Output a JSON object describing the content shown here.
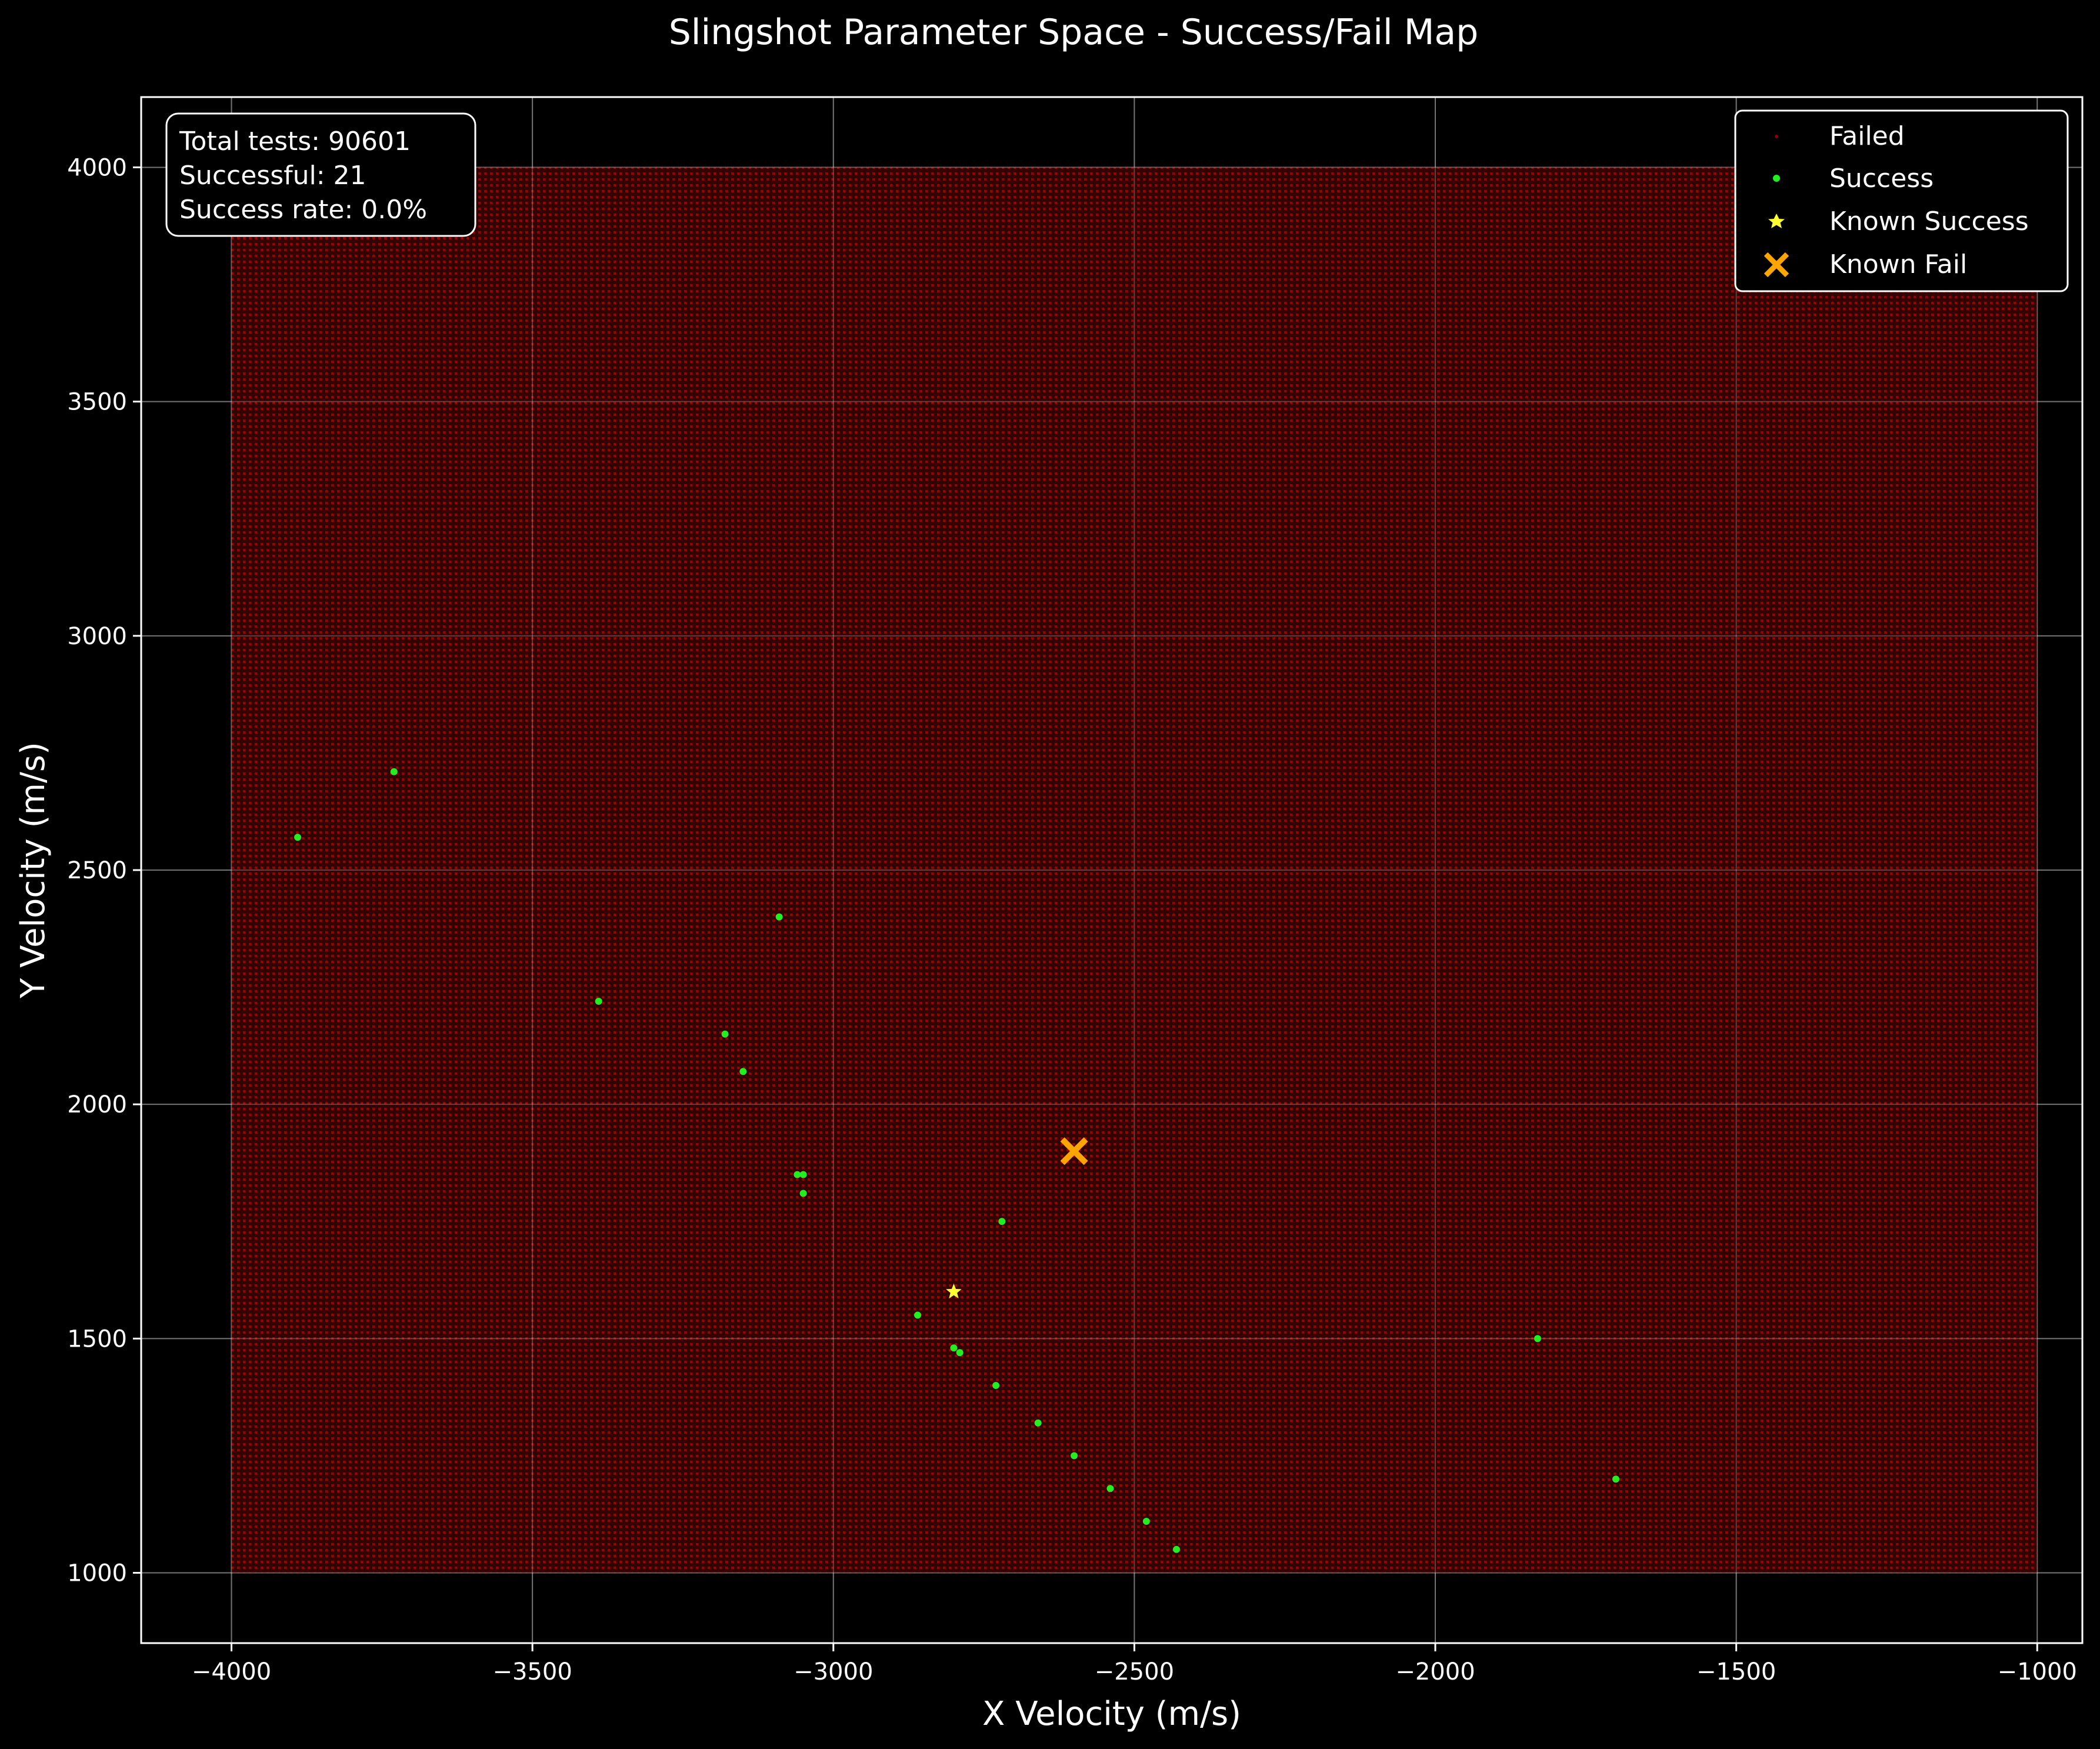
{
  "chart_data": {
    "type": "scatter",
    "title": "Slingshot Parameter Space - Success/Fail Map",
    "xlabel": "X Velocity (m/s)",
    "ylabel": "Y Velocity (m/s)",
    "xlim": [
      -4150,
      -925
    ],
    "ylim": [
      850,
      4150
    ],
    "xticks": [
      -4000,
      -3500,
      -3000,
      -2500,
      -2000,
      -1500,
      -1000
    ],
    "yticks": [
      1000,
      1500,
      2000,
      2500,
      3000,
      3500,
      4000
    ],
    "grid": true,
    "legend_position": "top-right",
    "stats_box": {
      "lines": [
        "Total tests: 90601",
        "Successful: 21",
        "Success rate: 0.0%"
      ]
    },
    "colors": {
      "background": "#000000",
      "failed": "#8b0000",
      "success": "#22ee22",
      "known_success": "#ffff33",
      "known_fail": "#ffa500",
      "text": "#ffffff"
    },
    "series": [
      {
        "name": "Failed",
        "marker": "dense-grid",
        "grid_x": [
          -4000,
          -1000
        ],
        "grid_y": [
          1000,
          4000
        ],
        "grid_count": [
          301,
          301
        ]
      },
      {
        "name": "Success",
        "marker": "dot",
        "points": [
          [
            -3890,
            2570
          ],
          [
            -3730,
            2710
          ],
          [
            -3390,
            2220
          ],
          [
            -3090,
            2400
          ],
          [
            -3180,
            2150
          ],
          [
            -3150,
            2070
          ],
          [
            -3060,
            1850
          ],
          [
            -3050,
            1850
          ],
          [
            -3050,
            1810
          ],
          [
            -2720,
            1750
          ],
          [
            -2860,
            1550
          ],
          [
            -2800,
            1480
          ],
          [
            -2790,
            1470
          ],
          [
            -2730,
            1400
          ],
          [
            -2660,
            1320
          ],
          [
            -2600,
            1250
          ],
          [
            -2540,
            1180
          ],
          [
            -2480,
            1110
          ],
          [
            -2430,
            1050
          ],
          [
            -1830,
            1500
          ],
          [
            -1700,
            1200
          ]
        ]
      },
      {
        "name": "Known Success",
        "marker": "star",
        "points": [
          [
            -2800,
            1600
          ]
        ]
      },
      {
        "name": "Known Fail",
        "marker": "x",
        "points": [
          [
            -2600,
            1900
          ]
        ]
      }
    ]
  }
}
